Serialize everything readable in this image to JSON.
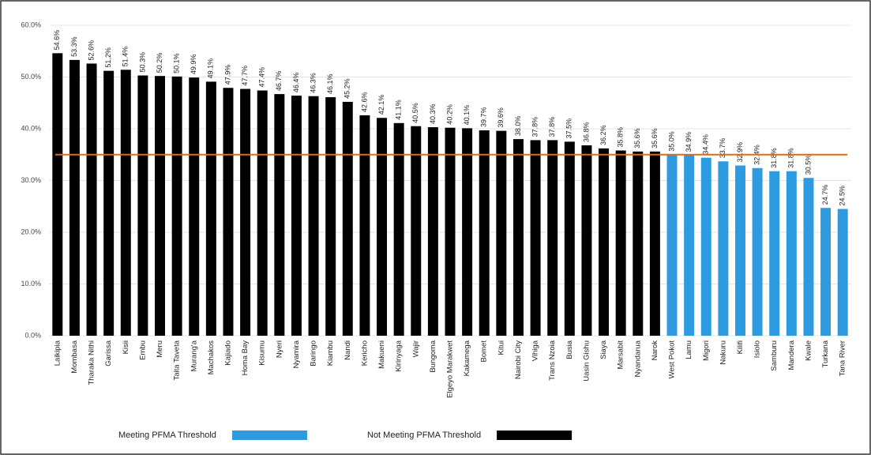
{
  "chart_data": {
    "type": "bar",
    "categories": [
      "Laikipia",
      "Mombasa",
      "Tharaka Nithi",
      "Garissa",
      "Kisii",
      "Embu",
      "Meru",
      "Taita Taveta",
      "Murang'a",
      "Machakos",
      "Kajiado",
      "Homa Bay",
      "Kisumu",
      "Nyeri",
      "Nyamira",
      "Baringo",
      "Kiambu",
      "Nandi",
      "Kericho",
      "Makueni",
      "Kirinyaga",
      "Wajir",
      "Bungoma",
      "Elgeyo Marakwet",
      "Kakamega",
      "Bomet",
      "Kitui",
      "Nairobi City",
      "Vihiga",
      "Trans Nzoia",
      "Busia",
      "Uasin Gishu",
      "Siaya",
      "Marsabit",
      "Nyandarua",
      "Narok",
      "West Pokot",
      "Lamu",
      "Migori",
      "Nakuru",
      "Kilifi",
      "Isiolo",
      "Samburu",
      "Mandera",
      "Kwale",
      "Turkana",
      "Tana River"
    ],
    "values": [
      54.6,
      53.3,
      52.6,
      51.2,
      51.4,
      50.3,
      50.2,
      50.1,
      49.9,
      49.1,
      47.9,
      47.7,
      47.4,
      46.7,
      46.4,
      46.3,
      46.1,
      45.2,
      42.6,
      42.1,
      41.1,
      40.5,
      40.3,
      40.2,
      40.1,
      39.7,
      39.6,
      38.0,
      37.8,
      37.8,
      37.5,
      36.8,
      36.2,
      35.8,
      35.6,
      35.6,
      35.0,
      34.9,
      34.4,
      33.7,
      32.9,
      32.4,
      31.8,
      31.8,
      30.5,
      24.7,
      24.5
    ],
    "value_labels": [
      "54.6%",
      "53.3%",
      "52.6%",
      "51.2%",
      "51.4%",
      "50.3%",
      "50.2%",
      "50.1%",
      "49.9%",
      "49.1%",
      "47.9%",
      "47.7%",
      "47.4%",
      "46.7%",
      "46.4%",
      "46.3%",
      "46.1%",
      "45.2%",
      "42.6%",
      "42.1%",
      "41.1%",
      "40.5%",
      "40.3%",
      "40.2%",
      "40.1%",
      "39.7%",
      "39.6%",
      "38.0%",
      "37.8%",
      "37.8%",
      "37.5%",
      "36.8%",
      "36.2%",
      "35.8%",
      "35.6%",
      "35.6%",
      "35.0%",
      "34.9%",
      "34.4%",
      "33.7%",
      "32.9%",
      "32.4%",
      "31.8%",
      "31.8%",
      "30.5%",
      "24.7%",
      "24.5%"
    ],
    "bar_colors": [
      "#000000",
      "#000000",
      "#000000",
      "#000000",
      "#000000",
      "#000000",
      "#000000",
      "#000000",
      "#000000",
      "#000000",
      "#000000",
      "#000000",
      "#000000",
      "#000000",
      "#000000",
      "#000000",
      "#000000",
      "#000000",
      "#000000",
      "#000000",
      "#000000",
      "#000000",
      "#000000",
      "#000000",
      "#000000",
      "#000000",
      "#000000",
      "#000000",
      "#000000",
      "#000000",
      "#000000",
      "#000000",
      "#000000",
      "#000000",
      "#000000",
      "#000000",
      "#2e9be0",
      "#2e9be0",
      "#2e9be0",
      "#2e9be0",
      "#2e9be0",
      "#2e9be0",
      "#2e9be0",
      "#2e9be0",
      "#2e9be0",
      "#2e9be0",
      "#2e9be0"
    ],
    "legend": [
      {
        "name": "Meeting PFMA Threshold",
        "color": "#2e9be0"
      },
      {
        "name": "Not Meeting PFMA Threshold",
        "color": "#000000"
      }
    ],
    "reference_line": 35.0,
    "reference_color": "#e06a1b",
    "ylim": [
      0,
      60
    ],
    "yticks": [
      {
        "value": 0,
        "label": "0.0%"
      },
      {
        "value": 10,
        "label": "10.0%"
      },
      {
        "value": 20,
        "label": "20.0%"
      },
      {
        "value": 30,
        "label": "30.0%"
      },
      {
        "value": 40,
        "label": "40.0%"
      },
      {
        "value": 50,
        "label": "50.0%"
      },
      {
        "value": 60,
        "label": "60.0%"
      }
    ],
    "grid": true
  }
}
